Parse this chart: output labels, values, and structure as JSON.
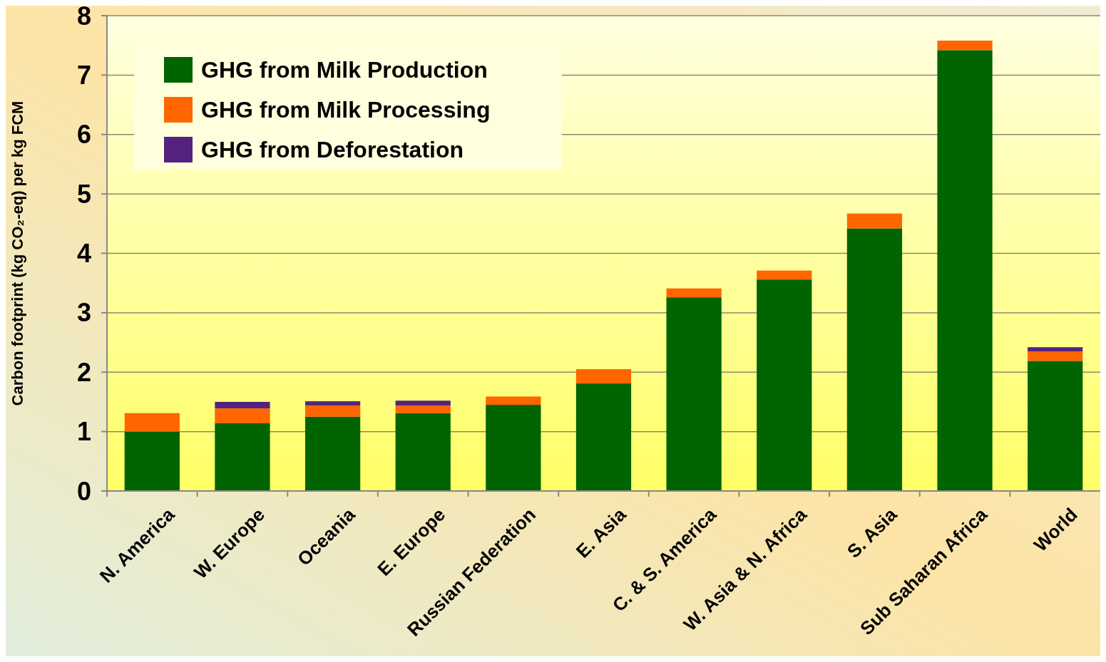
{
  "chart_data": {
    "type": "bar",
    "stacked": true,
    "ylabel": "Carbon footprint (kg CO₂-eq) per kg FCM",
    "categories": [
      "N. America",
      "W. Europe",
      "Oceania",
      "E. Europe",
      "Russian Federation",
      "E. Asia",
      "C. & S. America",
      "W. Asia & N. Africa",
      "S. Asia",
      "Sub Saharan Africa",
      "World"
    ],
    "series": [
      {
        "name": "GHG from Milk Production",
        "color": "#006400",
        "values": [
          1.0,
          1.14,
          1.25,
          1.31,
          1.45,
          1.81,
          3.26,
          3.56,
          4.42,
          7.42,
          2.19
        ]
      },
      {
        "name": "GHG from Milk Processing",
        "color": "#ff6600",
        "values": [
          0.31,
          0.25,
          0.19,
          0.13,
          0.14,
          0.24,
          0.15,
          0.15,
          0.25,
          0.16,
          0.16
        ]
      },
      {
        "name": "GHG from Deforestation",
        "color": "#55227f",
        "values": [
          0,
          0.11,
          0.07,
          0.08,
          0,
          0,
          0,
          0,
          0,
          0,
          0.07
        ]
      }
    ],
    "ylim": [
      0,
      8
    ],
    "yticks": [
      0,
      1,
      2,
      3,
      4,
      5,
      6,
      7,
      8
    ],
    "grid": "y",
    "legend": "top left"
  }
}
